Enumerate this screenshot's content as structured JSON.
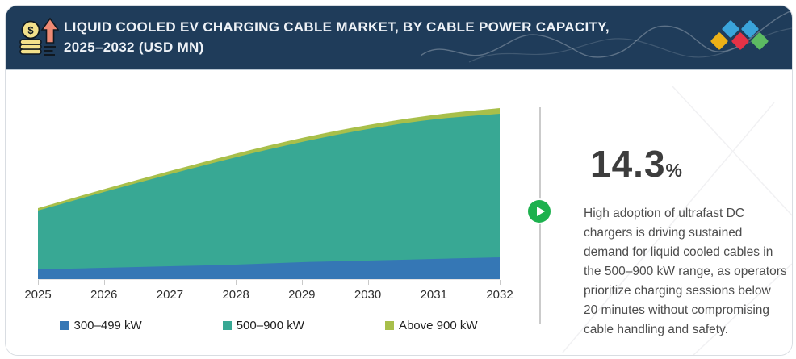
{
  "header": {
    "title_line1": "LIQUID COOLED EV CHARGING CABLE MARKET, BY CABLE POWER CAPACITY,",
    "title_line2": "2025–2032 (USD MN)",
    "background_color": "#1f3c5a",
    "icon": "money-growth-icon",
    "logo": {
      "name": "brand-diamonds-logo",
      "colors": [
        "#ecb117",
        "#3aa4db",
        "#e43246",
        "#3aa4db",
        "#5cbb62"
      ]
    }
  },
  "chart_data": {
    "type": "area",
    "stacked": true,
    "title": "Liquid Cooled EV Charging Cable Market, by Cable Power Capacity, 2025–2032 (USD MN)",
    "categories": [
      "2025",
      "2026",
      "2027",
      "2028",
      "2029",
      "2030",
      "2031",
      "2032"
    ],
    "series": [
      {
        "name": "300–499 kW",
        "color": "#3577b5",
        "values": [
          12,
          14,
          16,
          18,
          21,
          23,
          25,
          27
        ]
      },
      {
        "name": "500–900 kW",
        "color": "#38a894",
        "values": [
          73,
          94,
          114,
          133,
          149,
          163,
          173,
          178
        ]
      },
      {
        "name": "Above 900 kW",
        "color": "#a8bf4a",
        "values": [
          3,
          3.5,
          4,
          4.5,
          5,
          5,
          5.5,
          7
        ]
      }
    ],
    "xlabel": "",
    "ylabel": "",
    "ylim": [
      0,
      225
    ],
    "y_axis_shown": false,
    "value_scale": "relative estimate (y-axis is unlabeled in source)",
    "grid": false,
    "legend_position": "bottom"
  },
  "insight": {
    "cagr_value": "14.3",
    "cagr_unit": "%",
    "description": "High adoption of ultrafast DC chargers is driving sustained demand for liquid cooled cables in the 500–900 kW range, as operators prioritize charging sessions below 20 minutes without compromising cable handling and safety."
  },
  "colors": {
    "header_bg": "#1f3c5a",
    "card_border": "#d9dde2",
    "divider": "#cbcbcb",
    "play_button": "#1db14e",
    "stat_text": "#3d3d3d",
    "body_text": "#4d4d4d",
    "axis_text": "#2e2e2e"
  }
}
